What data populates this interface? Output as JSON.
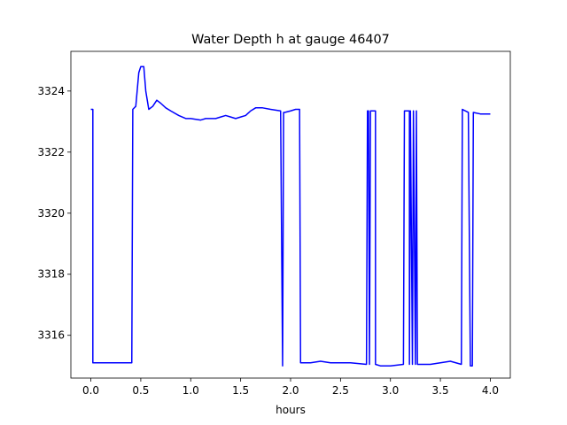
{
  "chart_data": {
    "type": "line",
    "title": "Water Depth h at gauge 46407",
    "xlabel": "hours",
    "ylabel": "",
    "xlim": [
      -0.2,
      4.2
    ],
    "ylim": [
      3314.6,
      3325.3
    ],
    "xticks": [
      0.0,
      0.5,
      1.0,
      1.5,
      2.0,
      2.5,
      3.0,
      3.5,
      4.0
    ],
    "xtick_labels": [
      "0.0",
      "0.5",
      "1.0",
      "1.5",
      "2.0",
      "2.5",
      "3.0",
      "3.5",
      "4.0"
    ],
    "yticks": [
      3316,
      3318,
      3320,
      3322,
      3324
    ],
    "ytick_labels": [
      "3316",
      "3318",
      "3320",
      "3322",
      "3324"
    ],
    "grid": false,
    "series": [
      {
        "color": "#0000ff",
        "x": [
          0.0,
          0.02,
          0.02,
          0.1,
          0.2,
          0.27,
          0.35,
          0.41,
          0.42,
          0.45,
          0.48,
          0.5,
          0.53,
          0.55,
          0.58,
          0.62,
          0.66,
          0.7,
          0.75,
          0.8,
          0.88,
          0.95,
          1.0,
          1.1,
          1.15,
          1.25,
          1.3,
          1.35,
          1.4,
          1.45,
          1.5,
          1.55,
          1.6,
          1.65,
          1.72,
          1.8,
          1.9,
          1.92,
          1.93,
          1.94,
          2.0,
          2.05,
          2.09,
          2.1,
          2.2,
          2.3,
          2.4,
          2.5,
          2.6,
          2.76,
          2.77,
          2.78,
          2.79,
          2.8,
          2.82,
          2.85,
          2.85,
          2.9,
          3.0,
          3.13,
          3.14,
          3.19,
          3.19,
          3.2,
          3.22,
          3.23,
          3.25,
          3.26,
          3.27,
          3.29,
          3.4,
          3.5,
          3.6,
          3.71,
          3.72,
          3.78,
          3.8,
          3.82,
          3.83,
          3.9,
          4.0
        ],
        "y": [
          3323.4,
          3323.4,
          3315.1,
          3315.1,
          3315.1,
          3315.1,
          3315.1,
          3315.1,
          3323.4,
          3323.5,
          3324.6,
          3324.8,
          3324.8,
          3324.0,
          3323.4,
          3323.5,
          3323.7,
          3323.6,
          3323.45,
          3323.35,
          3323.2,
          3323.1,
          3323.1,
          3323.05,
          3323.1,
          3323.1,
          3323.15,
          3323.2,
          3323.15,
          3323.1,
          3323.15,
          3323.2,
          3323.35,
          3323.45,
          3323.45,
          3323.4,
          3323.35,
          3315.0,
          3323.3,
          3323.3,
          3323.35,
          3323.4,
          3323.4,
          3315.1,
          3315.1,
          3315.15,
          3315.1,
          3315.1,
          3315.1,
          3315.05,
          3323.35,
          3323.35,
          3315.05,
          3323.35,
          3323.35,
          3323.35,
          3315.05,
          3315.0,
          3315.0,
          3315.05,
          3323.35,
          3323.35,
          3315.05,
          3323.35,
          3315.05,
          3323.35,
          3315.05,
          3323.35,
          3315.05,
          3315.05,
          3315.05,
          3315.1,
          3315.15,
          3315.05,
          3323.4,
          3323.3,
          3315.0,
          3315.0,
          3323.3,
          3323.25,
          3323.25
        ]
      }
    ]
  }
}
